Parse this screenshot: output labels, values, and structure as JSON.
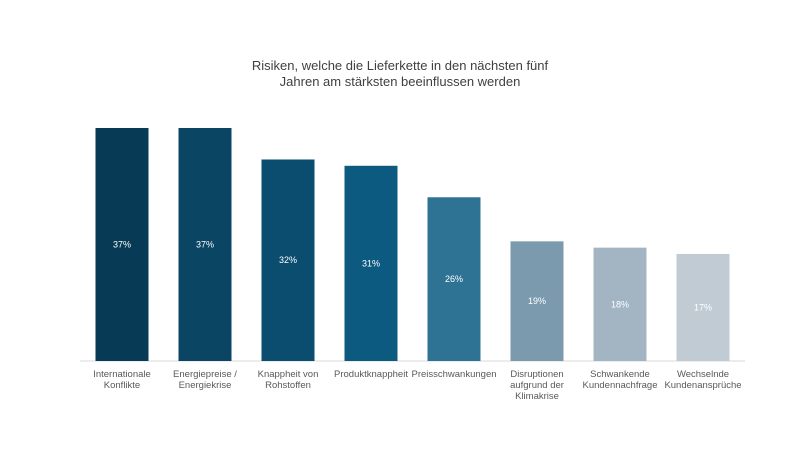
{
  "chart_data": {
    "type": "bar",
    "title": [
      "Risiken, welche die Lieferkette in den nächsten fünf",
      "Jahren am stärksten beeinflussen werden"
    ],
    "categories": [
      [
        "Internationale",
        "Konflikte"
      ],
      [
        "Energiepreise /",
        "Energiekrise"
      ],
      [
        "Knappheit von",
        "Rohstoffen"
      ],
      [
        "Produktknappheit"
      ],
      [
        "Preisschwankungen"
      ],
      [
        "Disruptionen",
        "aufgrund der",
        "Klimakrise"
      ],
      [
        "Schwankende",
        "Kundennachfrage"
      ],
      [
        "Wechselnde",
        "Kundenansprüche"
      ]
    ],
    "values": [
      37,
      37,
      32,
      31,
      26,
      19,
      18,
      17
    ],
    "data_labels": [
      "37%",
      "37%",
      "32%",
      "31%",
      "26%",
      "19%",
      "18%",
      "17%"
    ],
    "colors": [
      "#073a55",
      "#0a4564",
      "#0b4d6f",
      "#0c5a7f",
      "#2f7394",
      "#7c9aae",
      "#a3b5c3",
      "#c1cbd4"
    ],
    "ylim": [
      0,
      37
    ],
    "grid": false,
    "legend": "none"
  }
}
